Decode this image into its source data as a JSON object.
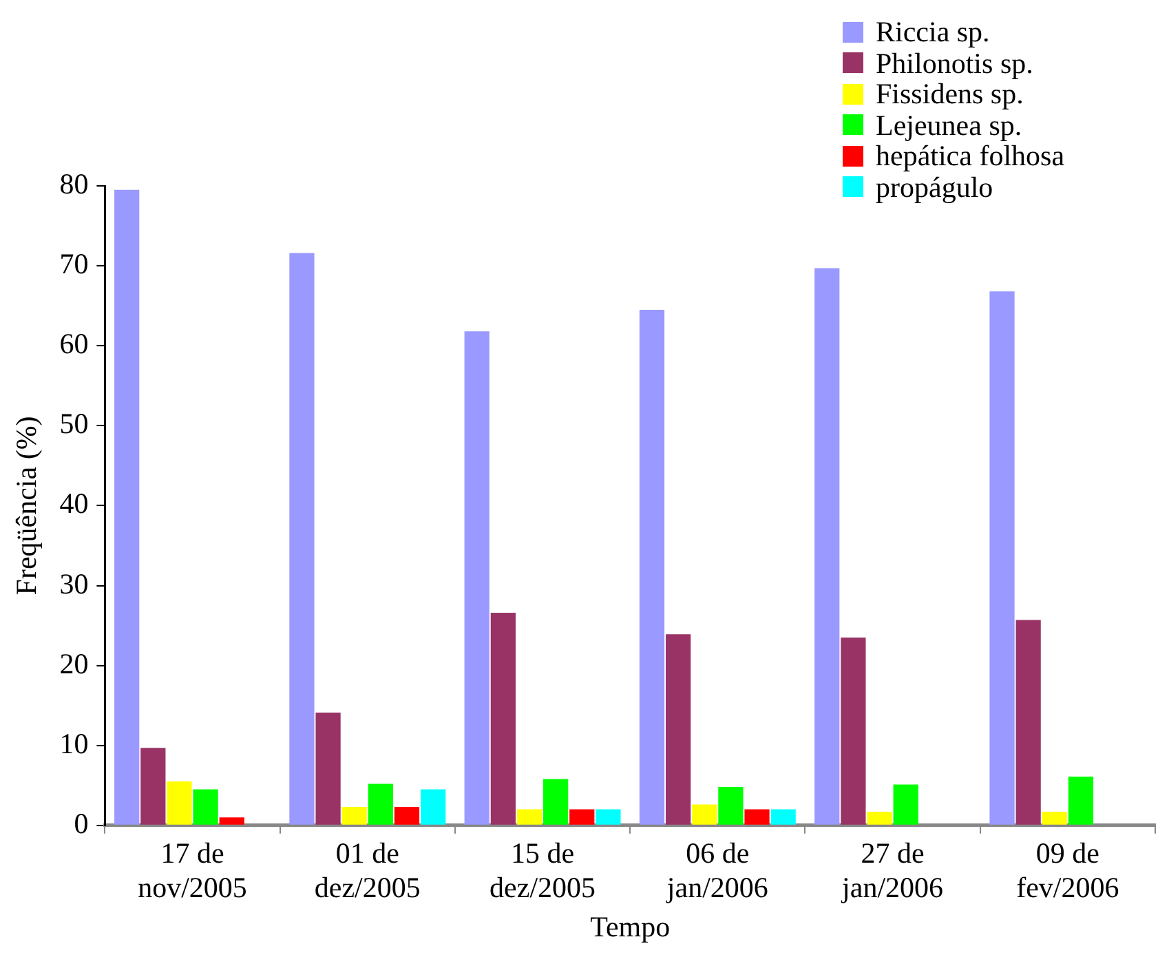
{
  "chart_data": {
    "type": "bar",
    "xlabel": "Tempo",
    "ylabel": "Freqüência (%)",
    "categories": [
      "17 de\nnov/2005",
      "01 de\ndez/2005",
      "15 de\ndez/2005",
      "06 de\njan/2006",
      "27 de\njan/2006",
      "09 de\nfev/2006"
    ],
    "series": [
      {
        "name": "Riccia sp.",
        "color": "#9999ff",
        "values": [
          79.5,
          71.6,
          61.8,
          64.5,
          69.7,
          66.8
        ]
      },
      {
        "name": "Philonotis sp.",
        "color": "#993366",
        "values": [
          9.7,
          14.1,
          26.6,
          23.9,
          23.5,
          25.7
        ]
      },
      {
        "name": "Fissidens sp.",
        "color": "#ffff00",
        "values": [
          5.5,
          2.3,
          2.0,
          2.6,
          1.7,
          1.7
        ]
      },
      {
        "name": "Lejeunea sp.",
        "color": "#00ff00",
        "values": [
          4.5,
          5.2,
          5.8,
          4.8,
          5.1,
          6.1
        ]
      },
      {
        "name": "hepática folhosa",
        "color": "#ff0000",
        "values": [
          1.0,
          2.3,
          2.0,
          2.0,
          null,
          null
        ]
      },
      {
        "name": "propágulo",
        "color": "#00ffff",
        "values": [
          null,
          4.5,
          2.0,
          2.0,
          null,
          null
        ]
      }
    ],
    "ylim": [
      0,
      80
    ],
    "yticks": [
      0,
      10,
      20,
      30,
      40,
      50,
      60,
      70,
      80
    ],
    "grid": false,
    "legend": "top right"
  }
}
